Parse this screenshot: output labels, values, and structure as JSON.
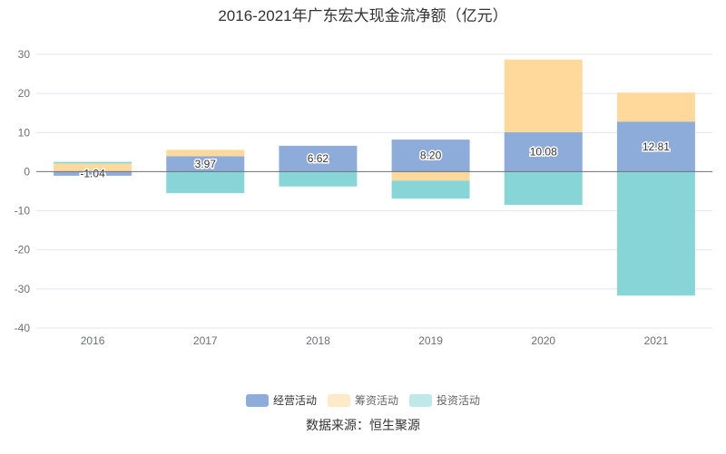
{
  "chart_data": {
    "type": "bar",
    "stacked": true,
    "title": "2016-2021年广东宏大现金流净额（亿元）",
    "categories": [
      "2016",
      "2017",
      "2018",
      "2019",
      "2020",
      "2021"
    ],
    "series": [
      {
        "name": "经营活动",
        "color": "#8eacda",
        "values": [
          -1.04,
          3.97,
          6.62,
          8.2,
          10.08,
          12.81
        ],
        "labels": [
          "-1.04",
          "3.97",
          "6.62",
          "8.20",
          "10.08",
          "12.81"
        ]
      },
      {
        "name": "筹资活动",
        "color": "#fed99b",
        "values": [
          2.1,
          1.6,
          0,
          -2.3,
          18.6,
          7.4
        ]
      },
      {
        "name": "投资活动",
        "color": "#88d5d8",
        "values": [
          0.4,
          -5.5,
          -3.8,
          -4.6,
          -8.5,
          -31.7
        ]
      }
    ],
    "ylim": [
      -40,
      30
    ],
    "yticks": [
      "30",
      "20",
      "10",
      "0",
      "-10",
      "-20",
      "-30",
      "-40"
    ],
    "ytick_values": [
      30,
      20,
      10,
      0,
      -10,
      -20,
      -30,
      -40
    ],
    "grid": true,
    "legend_position": "bottom",
    "source": "数据来源：恒生聚源"
  }
}
